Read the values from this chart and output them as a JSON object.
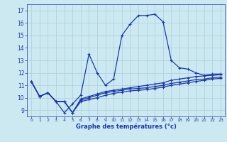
{
  "xlabel": "Graphe des températures (°c)",
  "background_color": "#cce8f0",
  "grid_color": "#aacfdc",
  "line_color": "#1a3aaa",
  "xlim": [
    -0.5,
    23.5
  ],
  "ylim": [
    8.5,
    17.5
  ],
  "yticks": [
    9,
    10,
    11,
    12,
    13,
    14,
    15,
    16,
    17
  ],
  "xticks": [
    0,
    1,
    2,
    3,
    4,
    5,
    6,
    7,
    8,
    9,
    10,
    11,
    12,
    13,
    14,
    15,
    16,
    17,
    18,
    19,
    20,
    21,
    22,
    23
  ],
  "main_line": {
    "x": [
      0,
      1,
      2,
      3,
      4,
      5,
      6,
      7,
      8,
      9,
      10,
      11,
      12,
      13,
      14,
      15,
      16,
      17,
      18,
      19,
      20,
      21,
      22,
      23
    ],
    "y": [
      11.3,
      10.1,
      10.4,
      9.7,
      8.8,
      9.5,
      10.2,
      13.5,
      12.0,
      11.0,
      11.5,
      15.0,
      15.9,
      16.6,
      16.6,
      16.7,
      16.1,
      13.0,
      12.4,
      12.3,
      12.0,
      11.8,
      11.9,
      11.9
    ]
  },
  "line2": {
    "x": [
      0,
      1,
      2,
      3,
      4,
      5,
      6,
      7,
      8,
      9,
      10,
      11,
      12,
      13,
      14,
      15,
      16,
      17,
      18,
      19,
      20,
      21,
      22,
      23
    ],
    "y": [
      11.3,
      10.1,
      10.4,
      9.7,
      9.7,
      8.8,
      9.9,
      10.1,
      10.3,
      10.5,
      10.6,
      10.7,
      10.8,
      10.9,
      11.0,
      11.1,
      11.2,
      11.4,
      11.5,
      11.6,
      11.7,
      11.75,
      11.8,
      11.85
    ]
  },
  "line3": {
    "x": [
      0,
      1,
      2,
      3,
      4,
      5,
      6,
      7,
      8,
      9,
      10,
      11,
      12,
      13,
      14,
      15,
      16,
      17,
      18,
      19,
      20,
      21,
      22,
      23
    ],
    "y": [
      11.3,
      10.1,
      10.4,
      9.7,
      9.7,
      8.8,
      9.8,
      10.0,
      10.2,
      10.4,
      10.5,
      10.6,
      10.7,
      10.75,
      10.8,
      10.9,
      11.0,
      11.15,
      11.25,
      11.35,
      11.45,
      11.5,
      11.6,
      11.65
    ]
  },
  "line4": {
    "x": [
      0,
      1,
      2,
      3,
      4,
      5,
      6,
      7,
      8,
      9,
      10,
      11,
      12,
      13,
      14,
      15,
      16,
      17,
      18,
      19,
      20,
      21,
      22,
      23
    ],
    "y": [
      11.3,
      10.1,
      10.4,
      9.7,
      9.7,
      8.8,
      9.7,
      9.85,
      10.0,
      10.2,
      10.35,
      10.45,
      10.55,
      10.6,
      10.65,
      10.75,
      10.85,
      11.0,
      11.1,
      11.2,
      11.3,
      11.4,
      11.5,
      11.55
    ]
  }
}
